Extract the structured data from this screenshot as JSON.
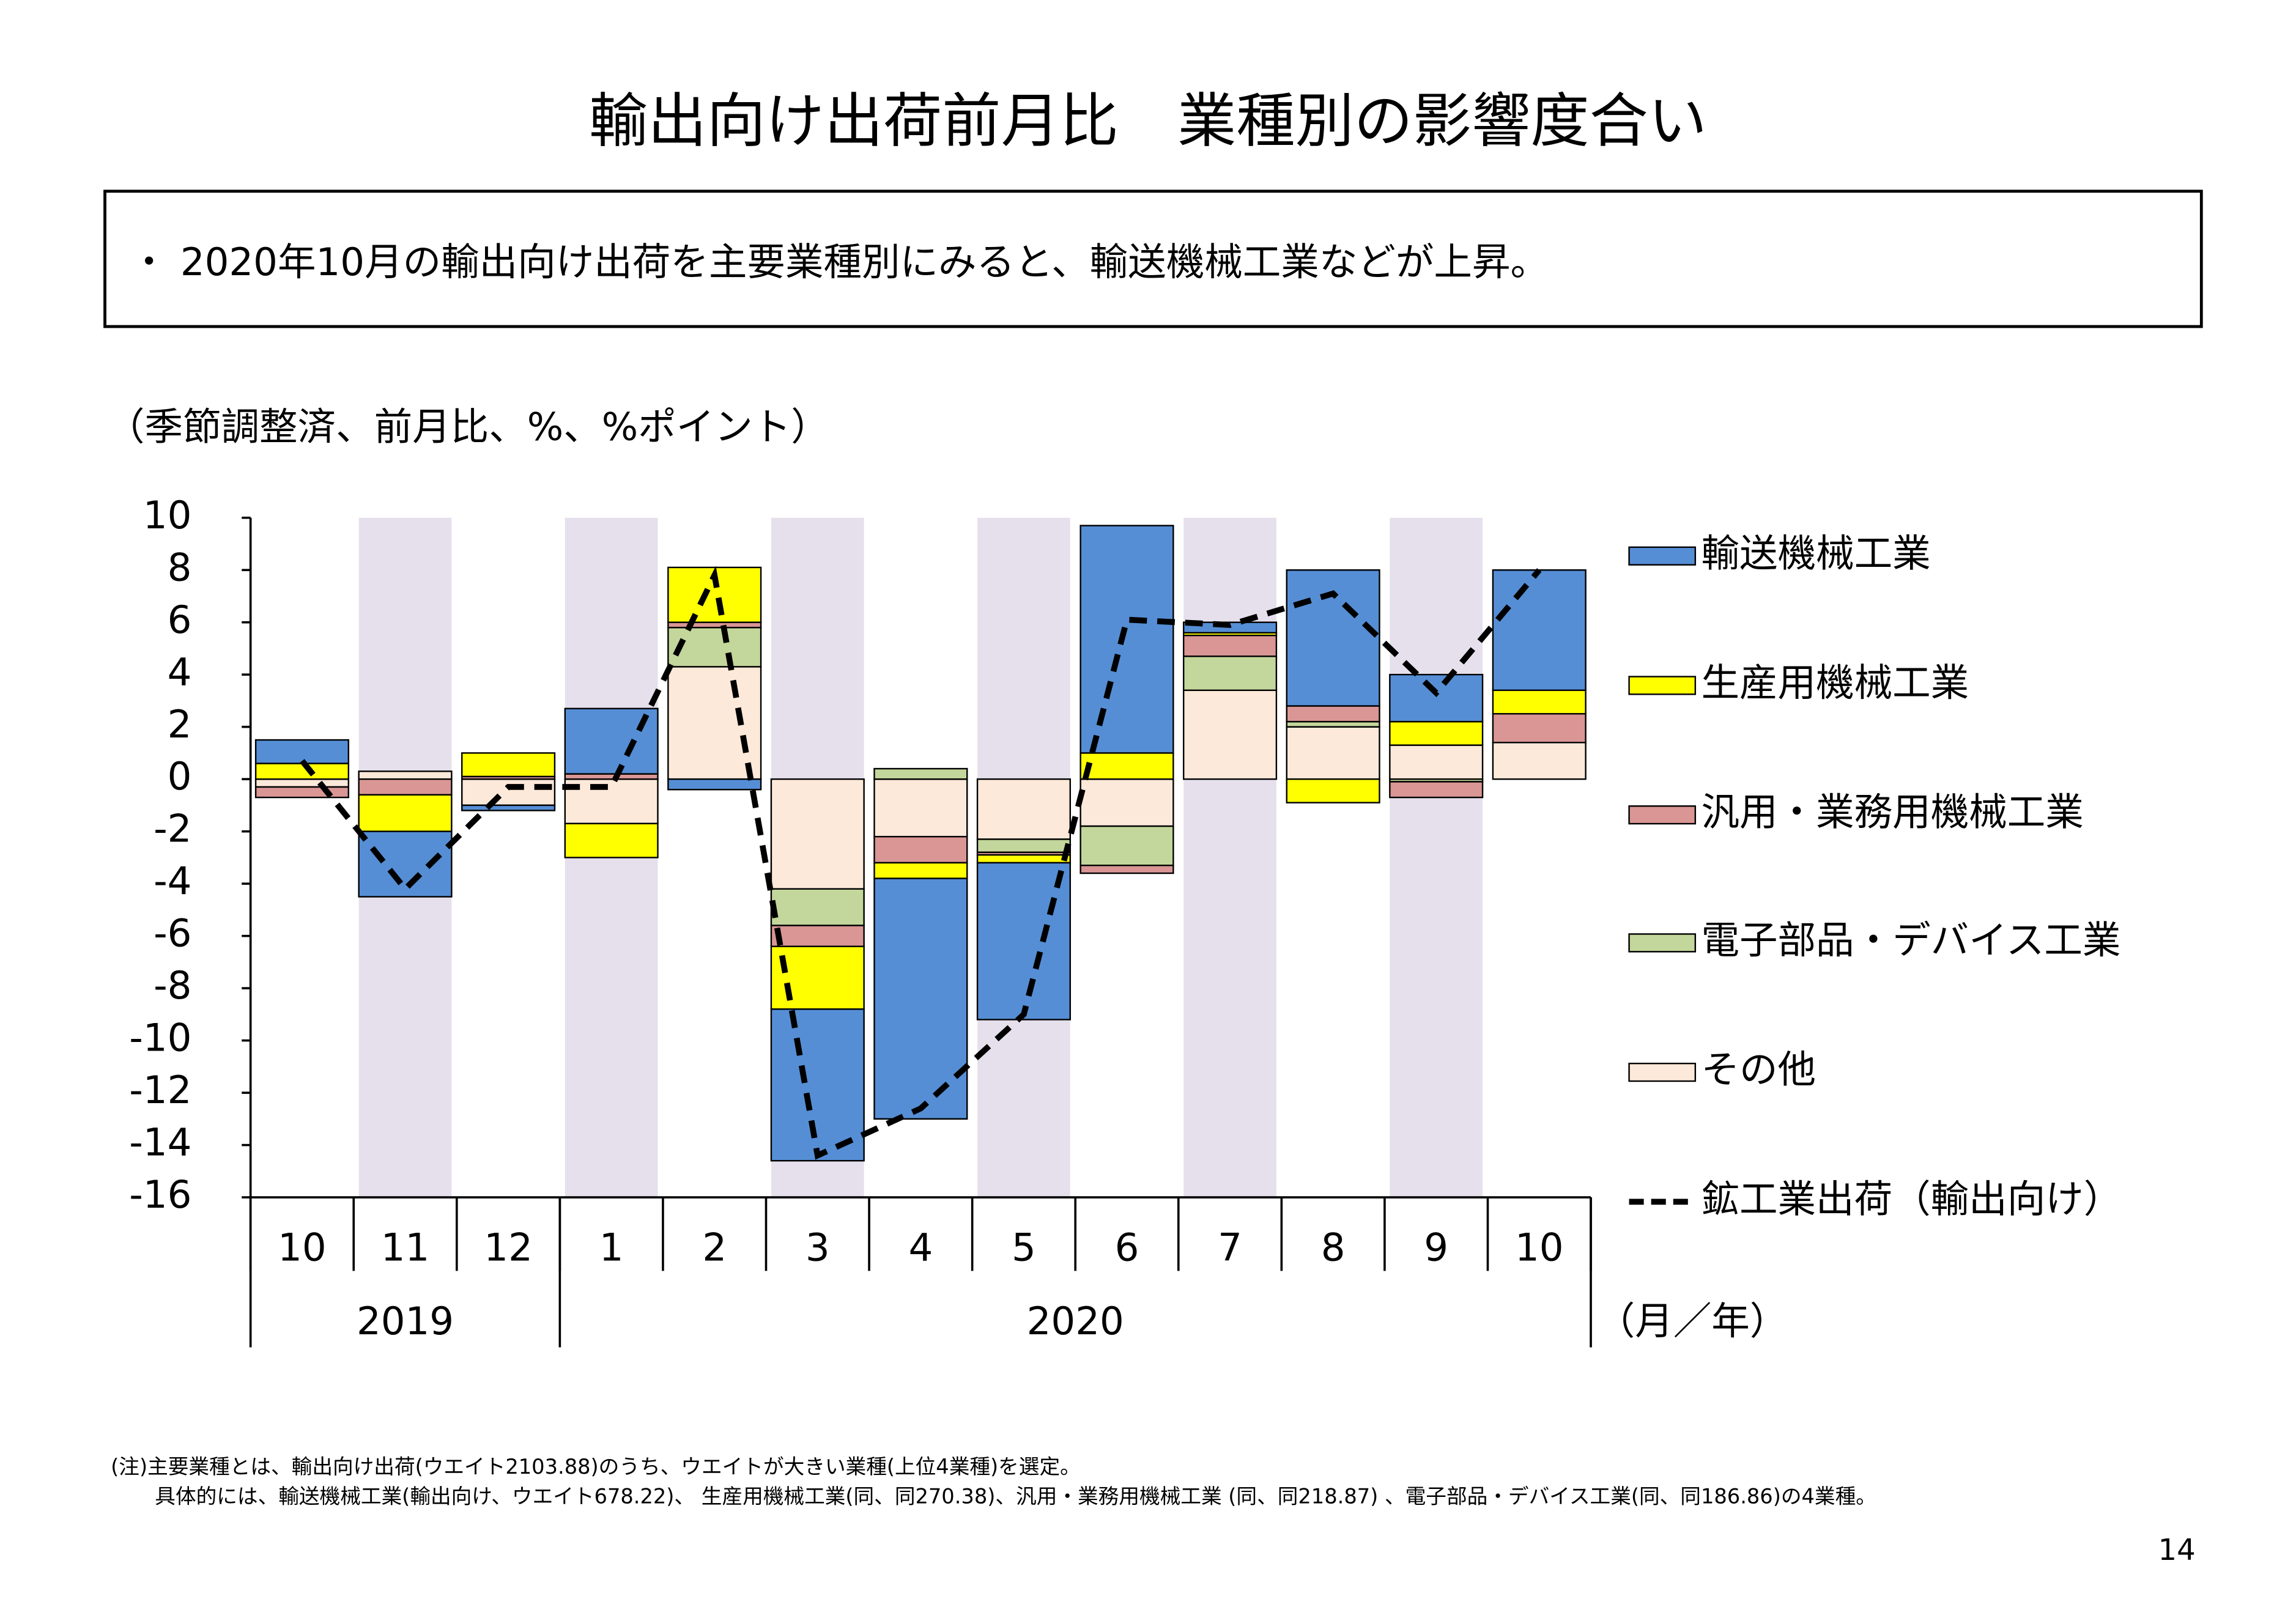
{
  "title": "輸出向け出荷前月比　業種別の影響度合い",
  "summary": "・ 2020年10月の輸出向け出荷を主要業種別にみると、輸送機械工業などが上昇。",
  "notes": [
    "(注)主要業種とは、輸出向け出荷(ウエイト2103.88)のうち、ウエイトが大きい業種(上位4業種)を選定。",
    "具体的には、輸送機械工業(輸出向け、ウエイト678.22)、 生産用機械工業(同、同270.38)、汎用・業務用機械工業 (同、同218.87) 、電子部品・デバイス工業(同、同186.86)の4業種。"
  ],
  "page_number": "14",
  "chart_data": {
    "type": "bar",
    "stacked": true,
    "y_label": "（季節調整済、前月比、%、%ポイント）",
    "x_label": "（月／年）",
    "categories": [
      "10",
      "11",
      "12",
      "1",
      "2",
      "3",
      "4",
      "5",
      "6",
      "7",
      "8",
      "9",
      "10"
    ],
    "year_groups": [
      {
        "label": "2019",
        "span": 3
      },
      {
        "label": "2020",
        "span": 10
      }
    ],
    "shade": {
      "color": "#e6e0ec",
      "indices": [
        1,
        3,
        5,
        7,
        9,
        11
      ]
    },
    "ylim": [
      -16,
      10
    ],
    "yticks": [
      -16,
      -14,
      -12,
      -10,
      -8,
      -6,
      -4,
      -2,
      0,
      2,
      4,
      6,
      8,
      10
    ],
    "series": [
      {
        "name": "輸送機械工業",
        "color": "#558ed5",
        "values": [
          0.9,
          -2.5,
          -0.2,
          2.5,
          -0.4,
          -5.8,
          -9.2,
          -6.0,
          8.7,
          0.4,
          5.2,
          1.8,
          4.6
        ]
      },
      {
        "name": "生産用機械工業",
        "color": "#ffff00",
        "values": [
          0.6,
          -1.4,
          0.9,
          -1.3,
          2.1,
          -2.4,
          -0.6,
          -0.3,
          1.0,
          0.1,
          -0.9,
          0.9,
          0.9
        ]
      },
      {
        "name": "汎用・業務用機械工業",
        "color": "#d99694",
        "values": [
          -0.4,
          -0.6,
          0.1,
          0.2,
          0.2,
          -0.8,
          -1.0,
          -0.1,
          -0.3,
          0.8,
          0.6,
          -0.6,
          1.1
        ]
      },
      {
        "name": "電子部品・デバイス工業",
        "color": "#c3d69b",
        "values": [
          0,
          0,
          0,
          0,
          1.5,
          -1.4,
          0.4,
          -0.5,
          -1.5,
          1.3,
          0.2,
          -0.1,
          0
        ]
      },
      {
        "name": "その他",
        "color": "#fde9d9",
        "values": [
          -0.3,
          0.3,
          -1.0,
          -1.7,
          4.3,
          -4.2,
          -2.2,
          -2.3,
          -1.8,
          3.4,
          2.0,
          1.3,
          1.4
        ]
      },
      {
        "name": "鉱工業出荷（輸出向け）",
        "type": "line",
        "color": "#000000",
        "values": [
          0.7,
          -4.2,
          -0.3,
          -0.3,
          7.8,
          -14.4,
          -12.6,
          -9.0,
          6.1,
          5.9,
          7.1,
          3.3,
          8.0
        ]
      }
    ]
  }
}
